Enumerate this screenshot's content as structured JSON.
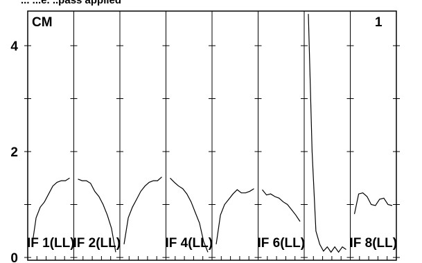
{
  "header_text": "... ...e. ..pass applied",
  "chart_data": {
    "type": "line",
    "corner_label_left": "CM",
    "corner_label_right": "1",
    "ylim": [
      0,
      4.7
    ],
    "yticks": [
      0,
      2,
      4
    ],
    "ytick_labels": [
      "0",
      "2",
      "4"
    ],
    "grid": false,
    "panel_count": 8,
    "panel_labels": [
      "IF 1(LL)",
      "IF 2(LL)",
      "",
      "IF 4(LL)",
      "",
      "IF 6(LL)",
      "",
      "IF 8(LL)"
    ],
    "series": [
      {
        "values": [
          0.2,
          0.75,
          0.95,
          1.05,
          1.2,
          1.35,
          1.42,
          1.45,
          1.45,
          1.5
        ]
      },
      {
        "values": [
          1.48,
          1.45,
          1.45,
          1.4,
          1.25,
          1.15,
          1.0,
          0.8,
          0.55,
          0.1
        ]
      },
      {
        "values": [
          0.25,
          0.75,
          0.95,
          1.1,
          1.25,
          1.35,
          1.42,
          1.45,
          1.45,
          1.52
        ]
      },
      {
        "values": [
          1.5,
          1.42,
          1.35,
          1.3,
          1.2,
          1.05,
          0.85,
          0.65,
          0.3,
          0.1
        ]
      },
      {
        "values": [
          0.25,
          0.8,
          1.0,
          1.1,
          1.2,
          1.28,
          1.22,
          1.22,
          1.25,
          1.3
        ]
      },
      {
        "values": [
          1.28,
          1.18,
          1.2,
          1.15,
          1.12,
          1.05,
          1.0,
          0.9,
          0.8,
          0.68
        ]
      },
      {
        "values": [
          4.6,
          2.0,
          0.5,
          0.25,
          0.12,
          0.2,
          0.1,
          0.2,
          0.1,
          0.2,
          0.15
        ]
      },
      {
        "values": [
          0.82,
          1.2,
          1.22,
          1.15,
          1.0,
          0.98,
          1.1,
          1.12,
          1.0,
          0.98
        ]
      }
    ]
  }
}
